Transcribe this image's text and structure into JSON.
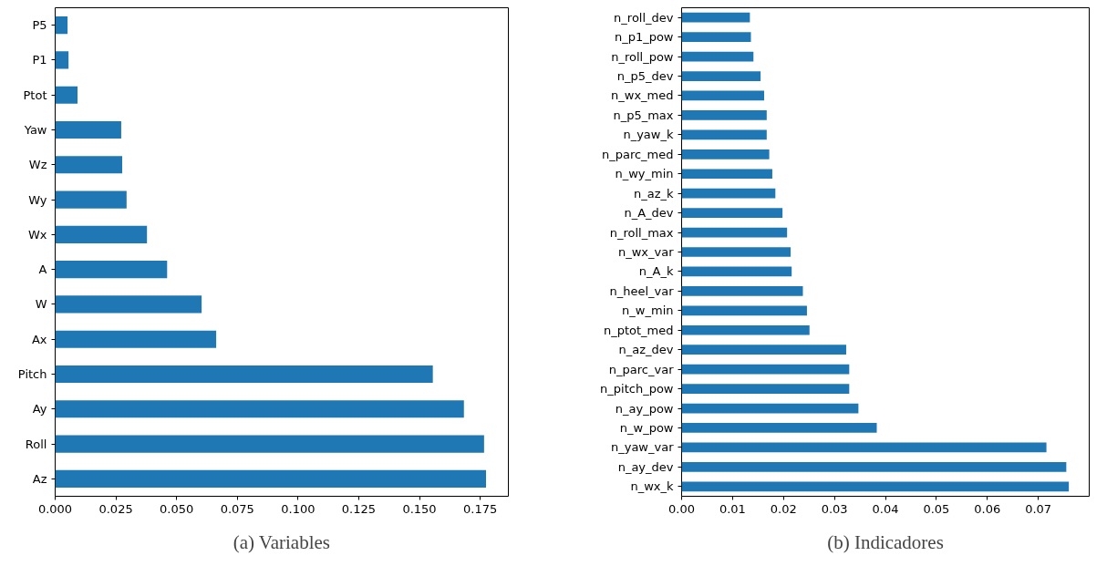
{
  "chart_data": [
    {
      "type": "bar",
      "orientation": "horizontal",
      "categories": [
        "P5",
        "P1",
        "Ptot",
        "Yaw",
        "Wz",
        "Wy",
        "Wx",
        "A",
        "W",
        "Ax",
        "Pitch",
        "Ay",
        "Roll",
        "Az"
      ],
      "values": [
        0.0051,
        0.0055,
        0.0092,
        0.0272,
        0.0276,
        0.0294,
        0.0378,
        0.0461,
        0.0603,
        0.0663,
        0.1555,
        0.1683,
        0.1766,
        0.1774
      ],
      "color": "#1f77b4",
      "xlim": [
        0,
        0.1866
      ],
      "xticks": [
        {
          "value": 0,
          "label": "0.000"
        },
        {
          "value": 0.025,
          "label": "0.025"
        },
        {
          "value": 0.05,
          "label": "0.050"
        },
        {
          "value": 0.075,
          "label": "0.075"
        },
        {
          "value": 0.1,
          "label": "0.100"
        },
        {
          "value": 0.125,
          "label": "0.125"
        },
        {
          "value": 0.15,
          "label": "0.150"
        },
        {
          "value": 0.175,
          "label": "0.175"
        }
      ],
      "grid": false,
      "annotations": [
        "(a) Variables"
      ]
    },
    {
      "type": "bar",
      "orientation": "horizontal",
      "categories": [
        "n_roll_dev",
        "n_p1_pow",
        "n_roll_pow",
        "n_p5_dev",
        "n_wx_med",
        "n_p5_max",
        "n_yaw_k",
        "n_parc_med",
        "n_wy_min",
        "n_az_k",
        "n_A_dev",
        "n_roll_max",
        "n_wx_var",
        "n_A_k",
        "n_heel_var",
        "n_w_min",
        "n_ptot_med",
        "n_az_dev",
        "n_parc_var",
        "n_pitch_pow",
        "n_ay_pow",
        "n_w_pow",
        "n_yaw_var",
        "n_ay_dev",
        "n_wx_k"
      ],
      "values": [
        0.0134,
        0.0136,
        0.0141,
        0.0155,
        0.0162,
        0.0167,
        0.0167,
        0.0172,
        0.0178,
        0.0184,
        0.0198,
        0.0207,
        0.0214,
        0.0216,
        0.0238,
        0.0246,
        0.0251,
        0.0323,
        0.0329,
        0.0329,
        0.0347,
        0.0383,
        0.0716,
        0.0755,
        0.076
      ],
      "color": "#1f77b4",
      "xlim": [
        0,
        0.08
      ],
      "xticks": [
        {
          "value": 0,
          "label": "0.00"
        },
        {
          "value": 0.01,
          "label": "0.01"
        },
        {
          "value": 0.02,
          "label": "0.02"
        },
        {
          "value": 0.03,
          "label": "0.03"
        },
        {
          "value": 0.04,
          "label": "0.04"
        },
        {
          "value": 0.05,
          "label": "0.05"
        },
        {
          "value": 0.06,
          "label": "0.06"
        },
        {
          "value": 0.07,
          "label": "0.07"
        }
      ],
      "grid": false,
      "annotations": [
        "(b) Indicadores"
      ]
    }
  ]
}
